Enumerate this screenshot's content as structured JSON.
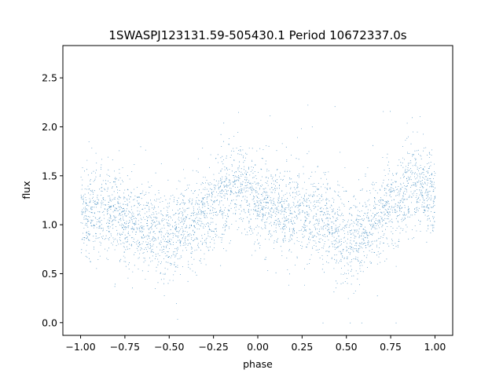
{
  "chart_data": {
    "type": "scatter",
    "title": "1SWASPJ123131.59-505430.1 Period 10672337.0s",
    "xlabel": "phase",
    "ylabel": "flux",
    "xlim": [
      -1.1,
      1.1
    ],
    "ylim": [
      -0.13,
      2.83
    ],
    "x_ticks": [
      -1.0,
      -0.75,
      -0.5,
      -0.25,
      0.0,
      0.25,
      0.5,
      0.75,
      1.0
    ],
    "x_tick_labels": [
      "−1.00",
      "−0.75",
      "−0.50",
      "−0.25",
      "0.00",
      "0.25",
      "0.50",
      "0.75",
      "1.00"
    ],
    "y_ticks": [
      0.0,
      0.5,
      1.0,
      1.5,
      2.0,
      2.5
    ],
    "y_tick_labels": [
      "0.0",
      "0.5",
      "1.0",
      "1.5",
      "2.0",
      "2.5"
    ],
    "grid": false,
    "marker_color": "#1f77b4",
    "series": [
      {
        "x_range": [
          -1.0,
          1.0
        ],
        "trend": {
          "phase": [
            -1.0,
            -0.9,
            -0.8,
            -0.7,
            -0.6,
            -0.5,
            -0.4,
            -0.3,
            -0.2,
            -0.1,
            0.0,
            0.1,
            0.2,
            0.3,
            0.4,
            0.5,
            0.6,
            0.7,
            0.8,
            0.9,
            1.0
          ],
          "median_flux": [
            1.15,
            1.12,
            1.12,
            1.0,
            1.0,
            0.85,
            1.0,
            1.1,
            1.3,
            1.4,
            1.25,
            1.15,
            1.12,
            1.12,
            1.0,
            0.85,
            0.95,
            1.1,
            1.3,
            1.4,
            1.25
          ]
        },
        "flux_range": [
          0.0,
          2.7
        ],
        "point_count": 16000
      }
    ]
  }
}
